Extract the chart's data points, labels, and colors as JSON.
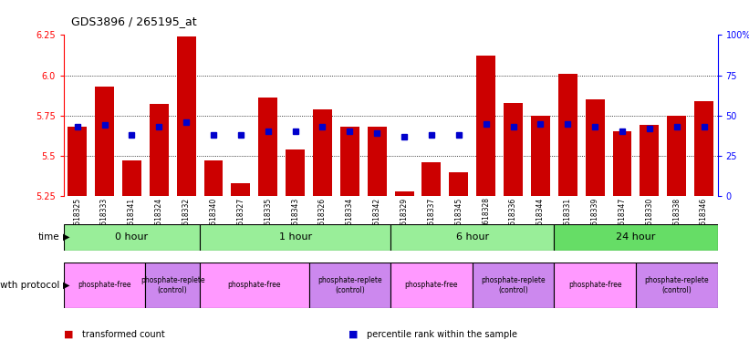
{
  "title": "GDS3896 / 265195_at",
  "samples": [
    "GSM618325",
    "GSM618333",
    "GSM618341",
    "GSM618324",
    "GSM618332",
    "GSM618340",
    "GSM618327",
    "GSM618335",
    "GSM618343",
    "GSM618326",
    "GSM618334",
    "GSM618342",
    "GSM618329",
    "GSM618337",
    "GSM618345",
    "GSM618328",
    "GSM618336",
    "GSM618344",
    "GSM618331",
    "GSM618339",
    "GSM618347",
    "GSM618330",
    "GSM618338",
    "GSM618346"
  ],
  "bar_values": [
    5.68,
    5.93,
    5.47,
    5.82,
    6.24,
    5.47,
    5.33,
    5.86,
    5.54,
    5.79,
    5.68,
    5.68,
    5.28,
    5.46,
    5.4,
    6.12,
    5.83,
    5.75,
    6.01,
    5.85,
    5.65,
    5.69,
    5.75,
    5.84
  ],
  "percentile_values": [
    43,
    44,
    38,
    43,
    46,
    38,
    38,
    40,
    40,
    43,
    40,
    39,
    37,
    38,
    38,
    45,
    43,
    45,
    45,
    43,
    40,
    42,
    43,
    43
  ],
  "ylim": [
    5.25,
    6.25
  ],
  "yticks_left": [
    5.25,
    5.5,
    5.75,
    6.0,
    6.25
  ],
  "yticks_right": [
    0,
    25,
    50,
    75,
    100
  ],
  "right_ylim": [
    0,
    100
  ],
  "grid_values": [
    5.5,
    5.75,
    6.0
  ],
  "bar_color": "#cc0000",
  "percentile_color": "#0000cc",
  "time_groups": [
    {
      "label": "0 hour",
      "start": 0,
      "end": 5,
      "color": "#99ee99"
    },
    {
      "label": "1 hour",
      "start": 5,
      "end": 12,
      "color": "#99ee99"
    },
    {
      "label": "6 hour",
      "start": 12,
      "end": 18,
      "color": "#99ee99"
    },
    {
      "label": "24 hour",
      "start": 18,
      "end": 24,
      "color": "#66dd66"
    }
  ],
  "protocol_groups": [
    {
      "label": "phosphate-free",
      "start": 0,
      "end": 3,
      "color": "#ff99ff"
    },
    {
      "label": "phosphate-replete\n(control)",
      "start": 3,
      "end": 5,
      "color": "#cc88ee"
    },
    {
      "label": "phosphate-free",
      "start": 5,
      "end": 9,
      "color": "#ff99ff"
    },
    {
      "label": "phosphate-replete\n(control)",
      "start": 9,
      "end": 12,
      "color": "#cc88ee"
    },
    {
      "label": "phosphate-free",
      "start": 12,
      "end": 15,
      "color": "#ff99ff"
    },
    {
      "label": "phosphate-replete\n(control)",
      "start": 15,
      "end": 18,
      "color": "#cc88ee"
    },
    {
      "label": "phosphate-free",
      "start": 18,
      "end": 21,
      "color": "#ff99ff"
    },
    {
      "label": "phosphate-replete\n(control)",
      "start": 21,
      "end": 24,
      "color": "#cc88ee"
    }
  ],
  "legend_items": [
    {
      "label": "transformed count",
      "color": "#cc0000"
    },
    {
      "label": "percentile rank within the sample",
      "color": "#0000cc"
    }
  ],
  "fig_width": 8.21,
  "fig_height": 3.84,
  "dpi": 100
}
